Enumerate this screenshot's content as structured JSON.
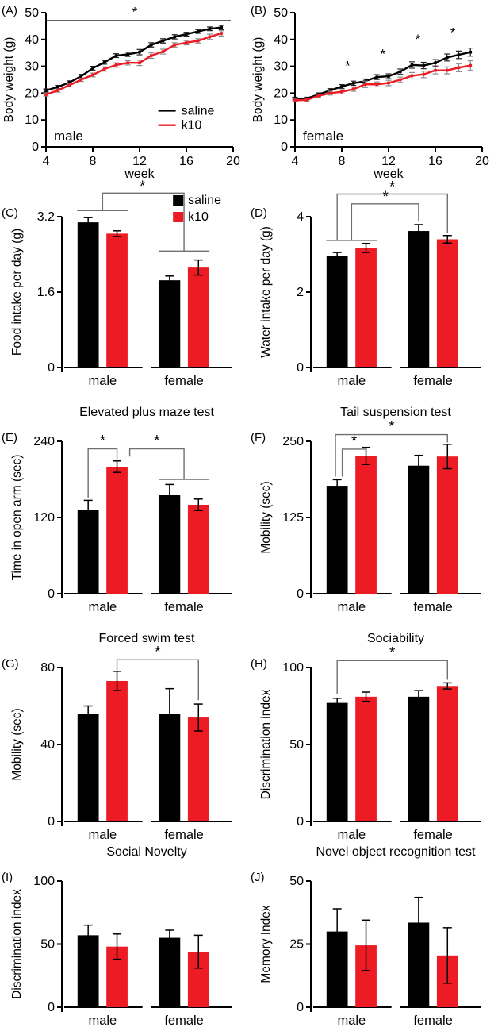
{
  "figure": {
    "legend": {
      "saline_label": "saline",
      "k10_label": "k10"
    },
    "colors": {
      "saline": "#000000",
      "k10": "#ed1c24",
      "bracket": "#6f6f6f",
      "axis": "#000000"
    }
  },
  "chart_data": [
    {
      "id": "A",
      "panel_label": "(A)",
      "type": "line",
      "title": "",
      "xlabel": "week",
      "ylabel": "Body weight (g)",
      "inner_label": "male",
      "xlim": [
        4,
        20
      ],
      "xticks": [
        4,
        8,
        12,
        16,
        20
      ],
      "ylim": [
        0,
        50
      ],
      "yticks": [
        0,
        10,
        20,
        30,
        40,
        50
      ],
      "x": [
        4,
        5,
        6,
        7,
        8,
        9,
        10,
        11,
        12,
        13,
        14,
        15,
        16,
        17,
        18,
        19
      ],
      "series": [
        {
          "name": "saline",
          "values": [
            21.0,
            22.3,
            24.0,
            26.3,
            29.3,
            31.5,
            34.0,
            34.5,
            35.3,
            38.0,
            39.5,
            41.0,
            42.0,
            43.0,
            44.0,
            44.5
          ],
          "errors": [
            0.6,
            0.6,
            0.6,
            0.7,
            0.7,
            0.7,
            0.7,
            0.8,
            1.0,
            0.8,
            0.8,
            0.8,
            0.7,
            0.7,
            0.7,
            0.8
          ]
        },
        {
          "name": "k10",
          "values": [
            19.5,
            21.0,
            23.0,
            25.0,
            26.8,
            29.0,
            30.5,
            31.3,
            31.3,
            34.0,
            35.5,
            38.0,
            38.8,
            39.5,
            41.0,
            42.3
          ],
          "errors": [
            0.6,
            0.6,
            0.6,
            0.6,
            0.7,
            0.8,
            0.8,
            0.8,
            1.0,
            1.0,
            0.9,
            0.8,
            0.8,
            0.8,
            1.0,
            1.0
          ]
        }
      ],
      "legend_style": "line",
      "annotations": [
        {
          "type": "line",
          "x1": 4,
          "y1": 47,
          "x2": 19.8,
          "y2": 47
        },
        {
          "type": "star",
          "x": 11.6,
          "y": 48.6
        }
      ]
    },
    {
      "id": "B",
      "panel_label": "(B)",
      "type": "line",
      "title": "",
      "xlabel": "week",
      "ylabel": "Body weight (g)",
      "inner_label": "female",
      "xlim": [
        4,
        20
      ],
      "xticks": [
        4,
        8,
        12,
        16,
        20
      ],
      "ylim": [
        0,
        50
      ],
      "yticks": [
        0,
        10,
        20,
        30,
        40,
        50
      ],
      "x": [
        4,
        5,
        6,
        7,
        8,
        9,
        10,
        11,
        12,
        13,
        14,
        15,
        16,
        17,
        18,
        19
      ],
      "series": [
        {
          "name": "saline",
          "values": [
            18.0,
            18.0,
            19.5,
            21.0,
            22.5,
            23.7,
            24.5,
            26.0,
            26.3,
            28.0,
            30.5,
            30.3,
            31.3,
            33.3,
            34.3,
            35.3
          ],
          "errors": [
            0.5,
            0.5,
            0.6,
            0.7,
            0.7,
            0.8,
            0.8,
            0.9,
            0.9,
            1.0,
            1.2,
            1.2,
            1.2,
            1.3,
            1.4,
            1.5
          ]
        },
        {
          "name": "k10",
          "values": [
            17.3,
            17.5,
            19.0,
            20.0,
            20.5,
            21.5,
            23.3,
            23.3,
            23.8,
            25.0,
            26.5,
            27.0,
            28.5,
            28.5,
            29.5,
            30.3
          ],
          "errors": [
            0.5,
            0.5,
            0.6,
            0.7,
            0.8,
            0.8,
            1.2,
            0.9,
            1.0,
            1.0,
            1.2,
            1.2,
            1.3,
            1.3,
            1.5,
            1.8
          ]
        }
      ],
      "legend_style": "none",
      "annotations": [
        {
          "type": "star",
          "x": 8.5,
          "y": 28.5
        },
        {
          "type": "star",
          "x": 11.5,
          "y": 33
        },
        {
          "type": "star",
          "x": 14.5,
          "y": 38.5
        },
        {
          "type": "star",
          "x": 17.5,
          "y": 41
        }
      ]
    },
    {
      "id": "C",
      "panel_label": "(C)",
      "type": "bar",
      "title": "",
      "ylabel": "Food intake per day (g)",
      "ylim": [
        0,
        3.2
      ],
      "yticks": [
        0,
        1.6,
        3.2
      ],
      "categories": [
        "male",
        "female"
      ],
      "series": [
        {
          "name": "saline",
          "values": [
            3.08,
            1.85
          ],
          "errors": [
            0.1,
            0.09
          ]
        },
        {
          "name": "k10",
          "values": [
            2.84,
            2.12
          ],
          "errors": [
            0.06,
            0.16
          ]
        }
      ],
      "legend_style": "square",
      "annotations": [
        {
          "type": "path",
          "points": [
            [
              0.09,
              3.33
            ],
            [
              0.39,
              3.33
            ]
          ]
        },
        {
          "type": "path",
          "points": [
            [
              0.24,
              3.33
            ],
            [
              0.24,
              3.7
            ],
            [
              0.72,
              3.7
            ],
            [
              0.72,
              2.47
            ]
          ]
        },
        {
          "type": "path",
          "points": [
            [
              0.57,
              2.47
            ],
            [
              0.87,
              2.47
            ]
          ]
        },
        {
          "type": "star",
          "x": 0.475,
          "y": 3.74
        }
      ]
    },
    {
      "id": "D",
      "panel_label": "(D)",
      "type": "bar",
      "title": "",
      "ylabel": "Water intake per day (g)",
      "ylim": [
        0,
        4
      ],
      "yticks": [
        0,
        2,
        4
      ],
      "categories": [
        "male",
        "female"
      ],
      "series": [
        {
          "name": "saline",
          "values": [
            2.95,
            3.62
          ],
          "errors": [
            0.1,
            0.17
          ]
        },
        {
          "name": "k10",
          "values": [
            3.17,
            3.4
          ],
          "errors": [
            0.12,
            0.1
          ]
        }
      ],
      "legend_style": "none",
      "annotations": [
        {
          "type": "path",
          "points": [
            [
              0.09,
              3.37
            ],
            [
              0.39,
              3.37
            ]
          ]
        },
        {
          "type": "path",
          "points": [
            [
              0.24,
              3.37
            ],
            [
              0.24,
              4.34
            ],
            [
              0.635,
              4.34
            ],
            [
              0.635,
              3.88
            ]
          ]
        },
        {
          "type": "star",
          "x": 0.44,
          "y": 4.4
        },
        {
          "type": "path",
          "points": [
            [
              0.155,
              3.37
            ],
            [
              0.155,
              4.6
            ],
            [
              0.805,
              4.6
            ],
            [
              0.805,
              3.57
            ]
          ]
        },
        {
          "type": "star",
          "x": 0.48,
          "y": 4.66
        }
      ]
    },
    {
      "id": "E",
      "panel_label": "(E)",
      "type": "bar",
      "title": "Elevated plus maze test",
      "ylabel": "Time in open arm (sec)",
      "ylim": [
        0,
        240
      ],
      "yticks": [
        0,
        120,
        240
      ],
      "categories": [
        "male",
        "female"
      ],
      "series": [
        {
          "name": "saline",
          "values": [
            132,
            155
          ],
          "errors": [
            15,
            17
          ]
        },
        {
          "name": "k10",
          "values": [
            200,
            140
          ],
          "errors": [
            9,
            9
          ]
        }
      ],
      "legend_style": "none",
      "annotations": [
        {
          "type": "path",
          "points": [
            [
              0.155,
              150
            ],
            [
              0.155,
              228
            ],
            [
              0.325,
              228
            ],
            [
              0.325,
              212
            ]
          ]
        },
        {
          "type": "star",
          "x": 0.24,
          "y": 233
        },
        {
          "type": "path",
          "points": [
            [
              0.4,
              216
            ],
            [
              0.4,
              228
            ],
            [
              0.72,
              228
            ],
            [
              0.72,
              180
            ]
          ]
        },
        {
          "type": "star",
          "x": 0.56,
          "y": 233
        },
        {
          "type": "path",
          "points": [
            [
              0.57,
              180
            ],
            [
              0.87,
              180
            ]
          ]
        }
      ]
    },
    {
      "id": "F",
      "panel_label": "(F)",
      "type": "bar",
      "title": "Tail suspension test",
      "ylabel": "Mobility (sec)",
      "ylim": [
        0,
        250
      ],
      "yticks": [
        0,
        125,
        250
      ],
      "categories": [
        "male",
        "female"
      ],
      "series": [
        {
          "name": "saline",
          "values": [
            177,
            210
          ],
          "errors": [
            10,
            17
          ]
        },
        {
          "name": "k10",
          "values": [
            226,
            225
          ],
          "errors": [
            14,
            20
          ]
        }
      ],
      "legend_style": "none",
      "annotations": [
        {
          "type": "path",
          "points": [
            [
              0.185,
              192
            ],
            [
              0.185,
              237
            ],
            [
              0.325,
              237
            ],
            [
              0.325,
              231
            ]
          ]
        },
        {
          "type": "star",
          "x": 0.255,
          "y": 242
        },
        {
          "type": "path",
          "points": [
            [
              0.145,
              192
            ],
            [
              0.145,
              261
            ],
            [
              0.805,
              261
            ],
            [
              0.805,
              248
            ]
          ]
        },
        {
          "type": "star",
          "x": 0.475,
          "y": 266
        }
      ]
    },
    {
      "id": "G",
      "panel_label": "(G)",
      "type": "bar",
      "title": "Forced swim test",
      "ylabel": "Mobility (sec)",
      "ylim": [
        0,
        80
      ],
      "yticks": [
        0,
        40,
        80
      ],
      "categories": [
        "male",
        "female"
      ],
      "series": [
        {
          "name": "saline",
          "values": [
            56,
            56
          ],
          "errors": [
            4,
            13
          ]
        },
        {
          "name": "k10",
          "values": [
            73,
            54
          ],
          "errors": [
            5,
            7
          ]
        }
      ],
      "legend_style": "none",
      "annotations": [
        {
          "type": "path",
          "points": [
            [
              0.325,
              78.5
            ],
            [
              0.325,
              84
            ],
            [
              0.805,
              84
            ],
            [
              0.805,
              63
            ]
          ]
        },
        {
          "type": "star",
          "x": 0.565,
          "y": 85.5
        }
      ]
    },
    {
      "id": "H",
      "panel_label": "(H)",
      "type": "bar",
      "title": "Sociability",
      "ylabel": "Discrimination index",
      "ylim": [
        0,
        100
      ],
      "yticks": [
        0,
        50,
        100
      ],
      "categories": [
        "male",
        "female"
      ],
      "series": [
        {
          "name": "saline",
          "values": [
            77,
            81
          ],
          "errors": [
            3,
            4
          ]
        },
        {
          "name": "k10",
          "values": [
            81,
            88
          ],
          "errors": [
            3,
            2
          ]
        }
      ],
      "legend_style": "none",
      "annotations": [
        {
          "type": "path",
          "points": [
            [
              0.155,
              83
            ],
            [
              0.155,
              104.5
            ],
            [
              0.805,
              104.5
            ],
            [
              0.805,
              92
            ]
          ]
        },
        {
          "type": "star",
          "x": 0.48,
          "y": 106.5
        }
      ]
    },
    {
      "id": "I",
      "panel_label": "(I)",
      "type": "bar",
      "title": "Social Novelty",
      "ylabel": "Discrimination index",
      "ylim": [
        0,
        100
      ],
      "yticks": [
        0,
        50,
        100
      ],
      "categories": [
        "male",
        "female"
      ],
      "series": [
        {
          "name": "saline",
          "values": [
            57,
            55
          ],
          "errors": [
            8,
            6
          ]
        },
        {
          "name": "k10",
          "values": [
            48,
            44
          ],
          "errors": [
            10,
            13
          ]
        }
      ],
      "legend_style": "none",
      "annotations": []
    },
    {
      "id": "J",
      "panel_label": "(J)",
      "type": "bar",
      "title": "Novel object recognition test",
      "ylabel": "Memory Index",
      "ylim": [
        0,
        50
      ],
      "yticks": [
        0,
        25,
        50
      ],
      "categories": [
        "male",
        "female"
      ],
      "series": [
        {
          "name": "saline",
          "values": [
            30,
            33.5
          ],
          "errors": [
            9,
            10
          ]
        },
        {
          "name": "k10",
          "values": [
            24.5,
            20.5
          ],
          "errors": [
            10,
            11
          ]
        }
      ],
      "legend_style": "none",
      "annotations": []
    }
  ]
}
